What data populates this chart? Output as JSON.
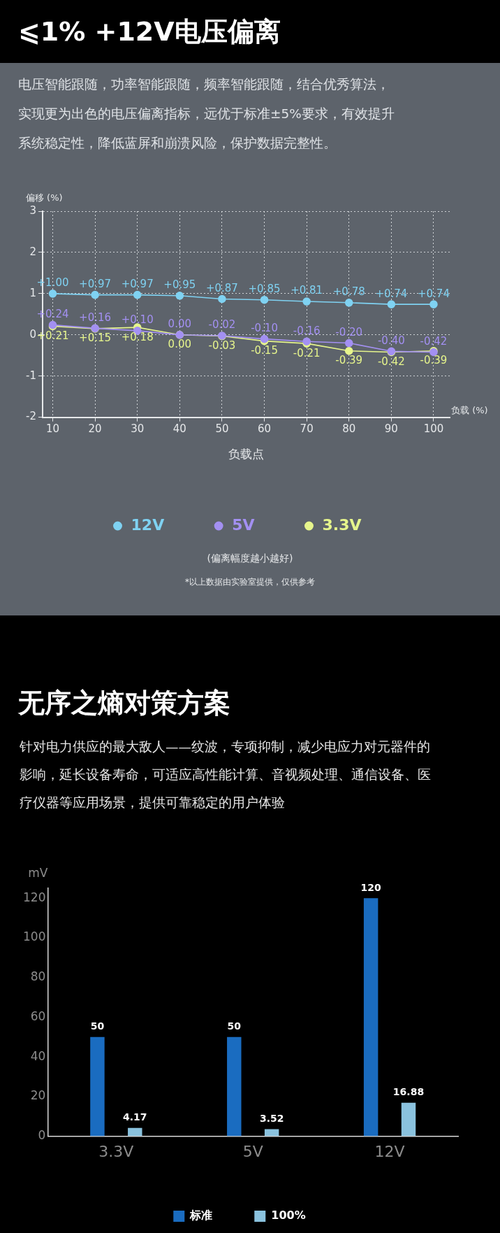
{
  "chart_data": [
    {
      "type": "line",
      "title": "⩽1% +12V电压偏离",
      "subtitle": "电压智能跟随，功率智能跟随，频率智能跟随，结合优秀算法，实现更为出色的电压偏离指标，远优于标准±5%要求，有效提升系统稳定性，降低蓝屏和崩溃风险，保护数据完整性。",
      "xlabel": "负载点",
      "ylabel": "偏移 (%)",
      "x": [
        10,
        20,
        30,
        40,
        50,
        60,
        70,
        80,
        90,
        100
      ],
      "xlim": [
        7.6,
        103.8
      ],
      "xticks": [
        10,
        20,
        30,
        40,
        50,
        60,
        70,
        80,
        90,
        100
      ],
      "ylim": [
        -2,
        3
      ],
      "yticks": [
        -2,
        -1,
        0,
        1,
        2,
        3
      ],
      "grid": true,
      "marker": "circle",
      "legend": "bottom",
      "series": [
        {
          "name": "12V",
          "color": "#7fd2f2",
          "values": [
            1.0,
            0.97,
            0.97,
            0.95,
            0.87,
            0.85,
            0.81,
            0.78,
            0.74,
            0.74
          ],
          "value_labels": [
            "+1.00",
            "+0.97",
            "+0.97",
            "+0.95",
            "+0.87",
            "+0.85",
            "+0.81",
            "+0.78",
            "+0.74",
            "+0.74"
          ]
        },
        {
          "name": "5V",
          "color": "#a390f2",
          "values": [
            0.24,
            0.16,
            0.1,
            0.0,
            -0.02,
            -0.1,
            -0.16,
            -0.2,
            -0.4,
            -0.42
          ],
          "value_labels": [
            "+0.24",
            "+0.16",
            "+0.10",
            "0.00",
            "-0.02",
            "-0.10",
            "-0.16",
            "-0.20",
            "-0.40",
            "-0.42"
          ]
        },
        {
          "name": "3.3V",
          "color": "#e6f58c",
          "values": [
            0.21,
            0.15,
            0.18,
            0.0,
            -0.03,
            -0.15,
            -0.21,
            -0.39,
            -0.42,
            -0.39
          ],
          "value_labels": [
            "+0.21",
            "+0.15",
            "+0.18",
            "0.00",
            "-0.03",
            "-0.15",
            "-0.21",
            "-0.39",
            "-0.42",
            "-0.39"
          ]
        }
      ],
      "annotations": [
        "负载 (%)",
        "(偏离幅度越小越好)",
        "*以上数据由实验室提供，仅供参考"
      ]
    },
    {
      "type": "bar",
      "title": "无序之熵对策方案",
      "subtitle": "针对电力供应的最大敌人——纹波，专项抑制，减少电应力对元器件的影响，延长设备寿命，可适应高性能计算、音视频处理、通信设备、医疗仪器等应用场景，提供可靠稳定的用户体验",
      "categories": [
        "3.3V",
        "5V",
        "12V"
      ],
      "ylabel": "mV",
      "ylim": [
        0,
        125
      ],
      "yticks": [
        0,
        20,
        40,
        60,
        80,
        100,
        120
      ],
      "grid": false,
      "legend": "bottom",
      "data_labels": true,
      "series": [
        {
          "name": "标准",
          "color": "#1a6cc0",
          "values": [
            50,
            50,
            120
          ]
        },
        {
          "name": "100%",
          "color": "#8ac2de",
          "values": [
            4.17,
            3.52,
            16.88
          ]
        }
      ]
    }
  ]
}
